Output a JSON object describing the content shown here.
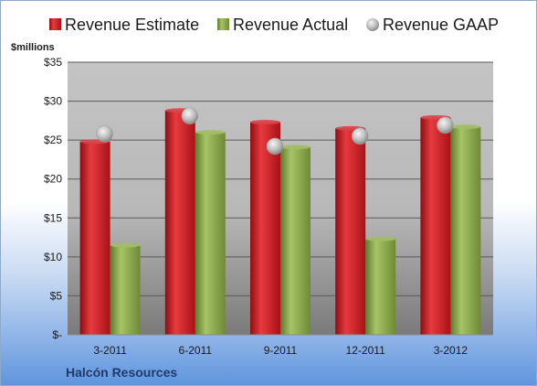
{
  "chart_data": {
    "type": "bar",
    "title": "",
    "unit_label": "$millions",
    "company": "Halcón Resources",
    "categories": [
      "3-2011",
      "6-2011",
      "9-2011",
      "12-2011",
      "3-2012"
    ],
    "series": [
      {
        "name": "Revenue Estimate",
        "kind": "bar",
        "color": "#c0161d",
        "values": [
          24.8,
          28.8,
          27.3,
          26.5,
          27.9
        ]
      },
      {
        "name": "Revenue Actual",
        "kind": "bar",
        "color": "#8aa64a",
        "values": [
          11.5,
          26.0,
          24.1,
          12.3,
          26.7
        ]
      },
      {
        "name": "Revenue GAAP",
        "kind": "marker",
        "color": "#b5b5b5",
        "values": [
          25.8,
          28.1,
          24.2,
          25.5,
          26.9
        ]
      }
    ],
    "y_ticks": [
      "$-",
      "$5",
      "$10",
      "$15",
      "$20",
      "$25",
      "$30",
      "$35"
    ],
    "ylim": [
      0,
      35
    ],
    "grid": true,
    "legend_position": "top"
  }
}
